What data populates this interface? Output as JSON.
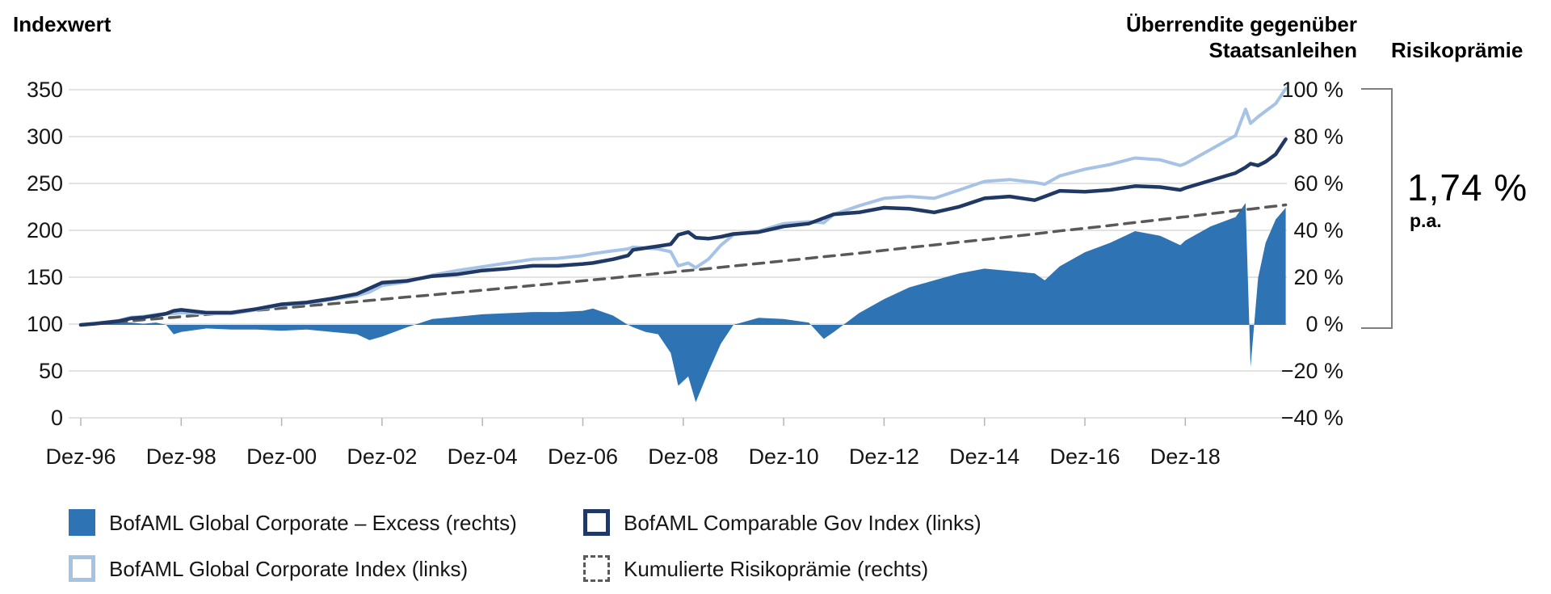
{
  "header": {
    "left_axis_title": "Indexwert",
    "right_axis_title_line1": "Überrendite gegenüber",
    "right_axis_title_line2": "Staatsanleihen",
    "risk_premium_title": "Risikoprämie"
  },
  "annotation": {
    "value": "1,74 %",
    "unit": "p.a."
  },
  "legend": {
    "position": "bottom",
    "items": [
      {
        "label": "BofAML Global Corporate – Excess (rechts)",
        "swatch": "filled-blue-square"
      },
      {
        "label": "BofAML Global Corporate Index (links)",
        "swatch": "light-blue-outline-square"
      },
      {
        "label": "BofAML Comparable Gov Index (links)",
        "swatch": "navy-outline-square"
      },
      {
        "label": "Kumulierte Risikoprämie (rechts)",
        "swatch": "dashed-gray-outline-square"
      }
    ]
  },
  "colors": {
    "excess_area": "#2E74B5",
    "corporate_line": "#A6C3E6",
    "gov_line": "#1F3864",
    "premium_dashed": "#595959",
    "gridline": "#DADADA",
    "axis_tick": "#B5B5B5",
    "bracket": "#7F7F7F",
    "text": "#161616"
  },
  "chart_data": {
    "type": "area",
    "title": "Indexwert",
    "xlabel": "",
    "ylabel_left": "Indexwert",
    "ylabel_right": "Überrendite gegenüber Staatsanleihen",
    "grid": true,
    "x_unit": "years_since_Dez-96",
    "x_tick_labels": [
      "Dez-96",
      "Dez-98",
      "Dez-00",
      "Dez-02",
      "Dez-04",
      "Dez-06",
      "Dez-08",
      "Dez-10",
      "Dez-12",
      "Dez-14",
      "Dez-16",
      "Dez-18"
    ],
    "y_left": {
      "ticks": [
        "350",
        "300",
        "250",
        "200",
        "150",
        "100",
        "50",
        "0"
      ],
      "range": [
        0,
        350
      ]
    },
    "y_right": {
      "ticks": [
        "100 %",
        "80 %",
        "60 %",
        "40 %",
        "20 %",
        "0 %",
        "−20 %",
        "−40 %"
      ],
      "range": [
        -40,
        100
      ]
    },
    "risk_premium_annotation": "1,74 % p.a.",
    "x": [
      0,
      0.25,
      0.5,
      0.75,
      1,
      1.25,
      1.5,
      1.7,
      1.85,
      2,
      2.5,
      3,
      3.5,
      4,
      4.5,
      5,
      5.5,
      5.75,
      6,
      6.5,
      7,
      7.5,
      8,
      8.5,
      9,
      9.5,
      10,
      10.2,
      10.6,
      10.9,
      11,
      11.25,
      11.5,
      11.75,
      11.9,
      12.1,
      12.25,
      12.5,
      12.75,
      13,
      13.5,
      14,
      14.5,
      14.8,
      15,
      15.5,
      16,
      16.5,
      17,
      17.5,
      18,
      18.5,
      19,
      19.2,
      19.5,
      20,
      20.5,
      21,
      21.5,
      21.9,
      22,
      22.5,
      23,
      23.2,
      23.3,
      23.45,
      23.6,
      23.8,
      24
    ],
    "series": [
      {
        "name": "BofAML Global Corporate – Excess (rechts)",
        "type": "area",
        "axis": "right",
        "color": "#2E74B5",
        "values": [
          0,
          0.5,
          1,
          1,
          1,
          0.5,
          1,
          0,
          -4,
          -3,
          -1.5,
          -2,
          -2,
          -2.5,
          -2,
          -3,
          -4,
          -6.5,
          -5,
          -1,
          2.5,
          3.5,
          4.5,
          5,
          5.5,
          5.5,
          6,
          7,
          4,
          0,
          -1,
          -3,
          -4,
          -12,
          -26,
          -22,
          -33,
          -20,
          -8,
          0,
          3,
          2.5,
          1,
          -6,
          -3,
          5,
          11,
          16,
          19,
          22,
          24,
          23,
          22,
          19,
          25,
          31,
          35,
          40,
          38,
          34,
          36,
          42,
          46,
          52,
          -18,
          20,
          35,
          45,
          50
        ]
      },
      {
        "name": "Kumulierte Risikoprämie (rechts)",
        "type": "line",
        "dash": true,
        "axis": "right",
        "color": "#595959",
        "values": [
          0,
          0.4,
          0.9,
          1.3,
          1.7,
          2.2,
          2.6,
          3.0,
          3.2,
          3.5,
          4.4,
          5.3,
          6.2,
          7.1,
          8.1,
          9.0,
          9.9,
          10.4,
          10.9,
          11.9,
          12.8,
          13.8,
          14.8,
          15.8,
          16.8,
          17.8,
          18.8,
          19.2,
          20.0,
          20.7,
          20.9,
          21.4,
          21.9,
          22.4,
          22.8,
          23.2,
          23.5,
          24.0,
          24.6,
          25.1,
          26.2,
          27.3,
          28.4,
          29.1,
          29.5,
          30.6,
          31.8,
          33.0,
          34.1,
          35.3,
          36.4,
          37.6,
          38.8,
          39.3,
          40.1,
          41.2,
          42.4,
          43.7,
          44.9,
          45.9,
          46.1,
          47.4,
          48.7,
          49.2,
          49.4,
          49.8,
          50.2,
          50.7,
          51.2
        ]
      },
      {
        "name": "BofAML Global Corporate Index (links)",
        "type": "line",
        "dash": false,
        "axis": "left",
        "color": "#A6C3E6",
        "values": [
          100,
          101.5,
          103,
          104.5,
          108,
          109,
          111,
          112,
          112,
          113,
          112,
          112,
          116,
          121,
          123,
          127,
          131,
          135,
          142,
          146,
          153,
          158,
          162,
          166,
          170,
          171,
          174,
          176,
          179,
          181,
          183,
          182,
          181,
          178,
          163,
          166,
          161,
          170,
          185,
          196,
          200,
          208,
          210,
          209,
          218,
          227,
          235,
          237,
          235,
          244,
          253,
          255,
          252,
          250,
          259,
          266,
          271,
          278,
          276,
          270,
          272,
          287,
          302,
          330,
          315,
          322,
          328,
          336,
          352
        ]
      },
      {
        "name": "BofAML Comparable Gov Index (links)",
        "type": "line",
        "dash": false,
        "axis": "left",
        "color": "#1F3864",
        "values": [
          100,
          101,
          102.5,
          104,
          107,
          108,
          110,
          112,
          115,
          116,
          113,
          113,
          117,
          122,
          124,
          128,
          133,
          139,
          145,
          147,
          152,
          154,
          158,
          160,
          163,
          163,
          165,
          166,
          170,
          174,
          180,
          182,
          184,
          186,
          196,
          199,
          193,
          192,
          194,
          197,
          199,
          205,
          208,
          214,
          218,
          220,
          225,
          224,
          220,
          226,
          235,
          237,
          233,
          237,
          243,
          242,
          244,
          248,
          247,
          244,
          246,
          254,
          262,
          268,
          272,
          270,
          274,
          282,
          298
        ]
      }
    ]
  }
}
